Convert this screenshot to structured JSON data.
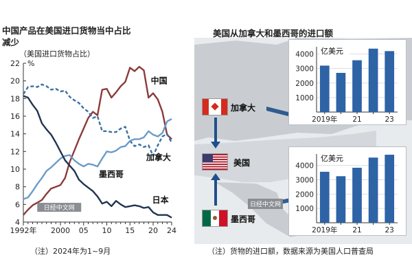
{
  "colors": {
    "china": "#8b3a3a",
    "canada": "#3d6fa3",
    "mexico": "#6a9cc8",
    "japan": "#1f3550",
    "bar": "#2e63a5",
    "map_land": "#c9cdd2",
    "map_sea": "#e8ebee",
    "arrow": "#1e4f8a"
  },
  "left": {
    "title_line1": "中国产品在美国进口货物当中占比",
    "title_line2": "减少",
    "subtitle": "（美国进口货物占比）",
    "note": "（注）2024年为1~9月",
    "watermark": "日经中文网"
  },
  "right": {
    "title": "美国从加拿大和墨西哥的进口额",
    "note": "（注）货物的进口额，数据来源为美国人口普查局",
    "labels": {
      "canada": "加拿大",
      "usa": "美国",
      "mexico": "墨西哥"
    },
    "watermark": "日经中文网"
  },
  "chart_data": [
    {
      "type": "line",
      "title": "中国产品在美国进口货物当中占比减少",
      "subtitle": "（美国进口货物占比）",
      "ylabel": "%",
      "ylim": [
        4,
        22
      ],
      "yticks": [
        4,
        6,
        8,
        10,
        12,
        14,
        16,
        18,
        20,
        22
      ],
      "xlim": [
        1992,
        2024
      ],
      "xtick_values": [
        1992,
        2000,
        2005,
        2010,
        2015,
        2020,
        2024
      ],
      "xtick_labels": [
        "1992年",
        "2000",
        "05",
        "10",
        "15",
        "20",
        "24"
      ],
      "x": [
        1992,
        1993,
        1994,
        1995,
        1996,
        1997,
        1998,
        1999,
        2000,
        2001,
        2002,
        2003,
        2004,
        2005,
        2006,
        2007,
        2008,
        2009,
        2010,
        2011,
        2012,
        2013,
        2014,
        2015,
        2016,
        2017,
        2018,
        2019,
        2020,
        2021,
        2022,
        2023,
        2024
      ],
      "series": [
        {
          "name": "中国",
          "key": "china",
          "dashed": false,
          "values": [
            4.8,
            5.4,
            5.9,
            6.2,
            6.5,
            7.2,
            7.8,
            8.0,
            8.2,
            9.0,
            10.8,
            12.1,
            13.4,
            14.6,
            15.8,
            16.5,
            16.1,
            19.0,
            19.1,
            18.1,
            18.7,
            19.4,
            19.9,
            21.5,
            21.1,
            21.6,
            21.2,
            18.1,
            18.6,
            17.9,
            16.5,
            13.9,
            13.4
          ]
        },
        {
          "name": "加拿大",
          "key": "canada",
          "dashed": true,
          "values": [
            18.5,
            19.3,
            19.4,
            19.3,
            19.6,
            19.4,
            19.0,
            19.1,
            18.8,
            18.9,
            18.2,
            17.8,
            17.5,
            16.9,
            16.5,
            15.8,
            16.0,
            14.3,
            14.3,
            14.2,
            14.2,
            14.6,
            14.8,
            13.2,
            12.6,
            12.8,
            12.5,
            12.7,
            11.5,
            12.7,
            13.7,
            14.0,
            13.0
          ]
        },
        {
          "name": "墨西哥",
          "key": "mexico",
          "dashed": false,
          "values": [
            6.6,
            6.8,
            7.5,
            8.3,
            9.0,
            9.8,
            10.2,
            10.7,
            11.2,
            11.5,
            11.6,
            11.0,
            10.6,
            10.3,
            10.6,
            10.5,
            10.3,
            11.2,
            12.0,
            11.9,
            12.1,
            12.5,
            12.6,
            13.2,
            13.4,
            13.4,
            13.6,
            14.3,
            13.9,
            13.7,
            14.1,
            15.4,
            15.7
          ]
        },
        {
          "name": "日本",
          "key": "japan",
          "dashed": false,
          "values": [
            18.3,
            18.1,
            17.3,
            16.6,
            15.2,
            14.5,
            13.9,
            13.0,
            12.0,
            11.0,
            10.4,
            9.8,
            8.8,
            8.3,
            7.9,
            7.5,
            6.9,
            6.1,
            6.3,
            5.8,
            6.4,
            6.0,
            5.7,
            5.8,
            5.9,
            5.8,
            5.6,
            5.7,
            5.1,
            4.8,
            4.8,
            4.8,
            4.5
          ]
        }
      ]
    },
    {
      "type": "bar",
      "ylabel": "亿美元",
      "ylim": [
        0,
        4500
      ],
      "yticks": [
        1000,
        2000,
        3000,
        4000
      ],
      "categories": [
        "2019年",
        "2020",
        "2021",
        "2022",
        "2023"
      ],
      "xtick_labels": [
        "2019年",
        "",
        "21",
        "",
        "23"
      ],
      "values": [
        3200,
        2700,
        3570,
        4370,
        4200
      ]
    },
    {
      "type": "bar",
      "ylabel": "亿美元",
      "ylim": [
        0,
        4800
      ],
      "yticks": [
        1000,
        2000,
        3000,
        4000
      ],
      "categories": [
        "2019年",
        "2020",
        "2021",
        "2022",
        "2023"
      ],
      "xtick_labels": [
        "2019年",
        "",
        "21",
        "",
        "23"
      ],
      "values": [
        3560,
        3250,
        3840,
        4550,
        4750
      ]
    }
  ]
}
